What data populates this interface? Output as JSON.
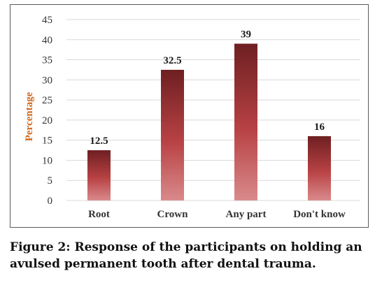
{
  "chart_data": {
    "type": "bar",
    "categories": [
      "Root",
      "Crown",
      "Any part",
      "Don't know"
    ],
    "values": [
      12.5,
      32.5,
      39,
      16
    ],
    "data_labels": [
      "12.5",
      "32.5",
      "39",
      "16"
    ],
    "ylabel": "Percentage",
    "xlabel": "",
    "ylim": [
      0,
      45
    ],
    "yticks": [
      0,
      5,
      10,
      15,
      20,
      25,
      30,
      35,
      40,
      45
    ],
    "grid": true,
    "legend": "none",
    "colors": {
      "bar_top": "#6e1f22",
      "bar_mid": "#b84244",
      "bar_bottom": "#d98a8c",
      "ylabel": "#d2691e"
    }
  },
  "caption": "Figure 2: Response of the participants on holding an avulsed permanent tooth after dental trauma."
}
